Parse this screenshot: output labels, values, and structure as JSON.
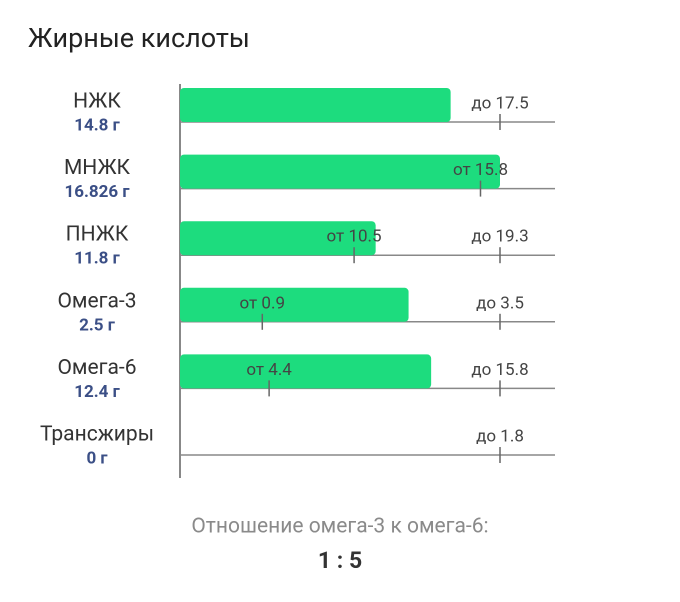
{
  "title": "Жирные кислоты",
  "rows": [
    {
      "name": "НЖК",
      "value": 14.8,
      "value_label": "14.8 г",
      "norms": [
        {
          "value": 17.5,
          "label": "до 17.5"
        }
      ]
    },
    {
      "name": "МНЖК",
      "value": 16.826,
      "value_label": "16.826 г",
      "norms": [
        {
          "value": 15.8,
          "label": "от 15.8"
        }
      ]
    },
    {
      "name": "ПНЖК",
      "value": 11.8,
      "value_label": "11.8 г",
      "norms": [
        {
          "value": 10.5,
          "label": "от 10.5"
        },
        {
          "value": 19.3,
          "label": "до 19.3"
        }
      ]
    },
    {
      "name": "Омега-3",
      "value": 2.5,
      "value_label": "2.5 г",
      "norms": [
        {
          "value": 0.9,
          "label": "от 0.9"
        },
        {
          "value": 3.5,
          "label": "до 3.5"
        }
      ]
    },
    {
      "name": "Омега-6",
      "value": 12.4,
      "value_label": "12.4 г",
      "norms": [
        {
          "value": 4.4,
          "label": "от 4.4"
        },
        {
          "value": 15.8,
          "label": "до 15.8"
        }
      ]
    },
    {
      "name": "Трансжиры",
      "value": 0,
      "value_label": "0 г",
      "norms": [
        {
          "value": 1.8,
          "label": "до 1.8"
        }
      ]
    }
  ],
  "ratio": {
    "label": "Отношение омега-3 к омега-6:",
    "value": "1 : 5"
  }
}
